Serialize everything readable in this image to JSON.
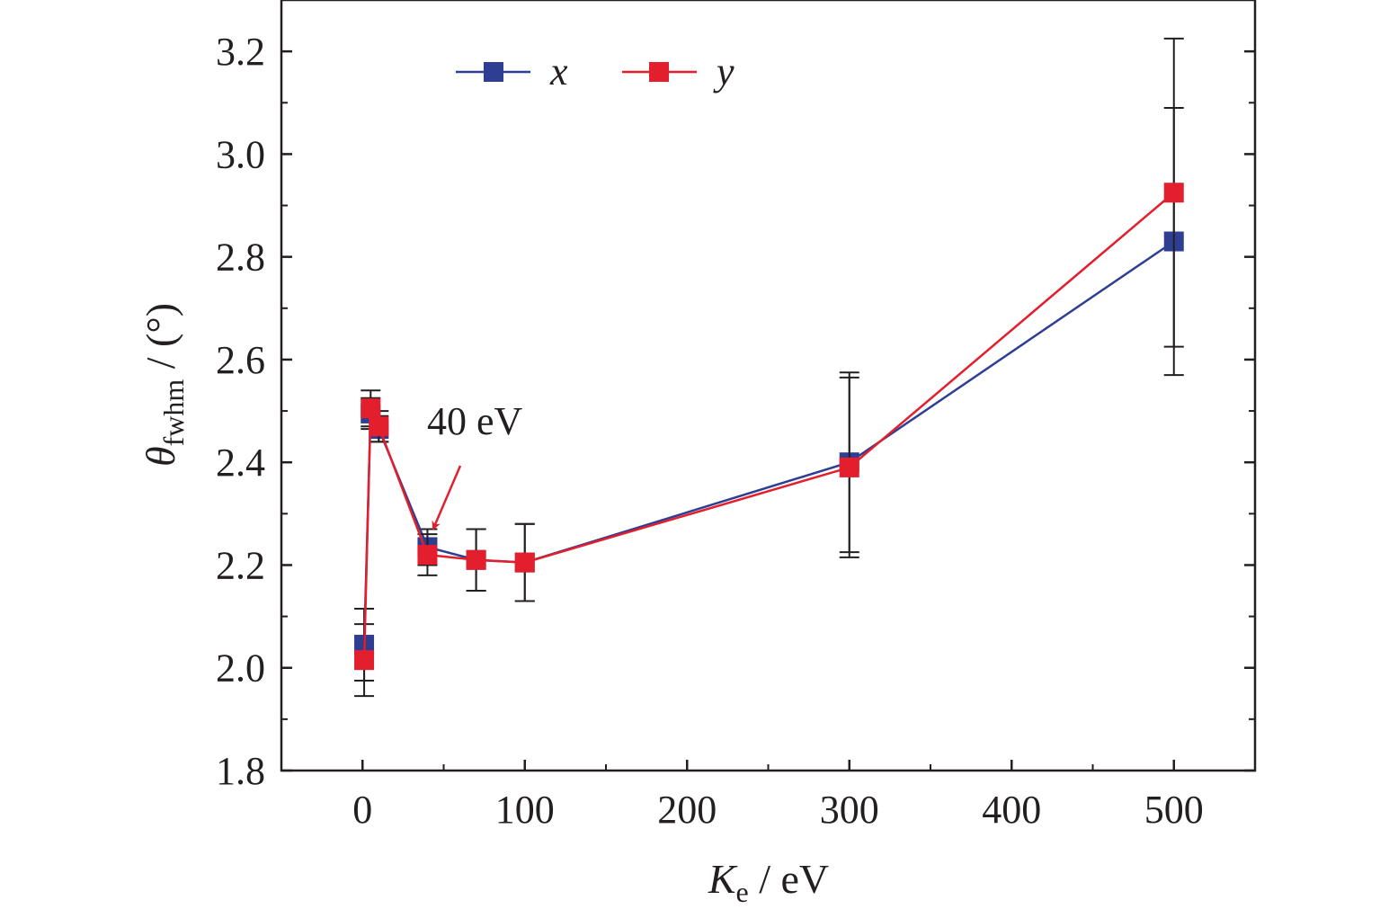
{
  "chart_data": {
    "type": "line",
    "xlabel": {
      "main": "K",
      "sub": "e",
      "unit": " / eV"
    },
    "ylabel": {
      "main": "θ",
      "sub": "fwhm",
      "unit": " / (°)"
    },
    "xlim": [
      -50,
      550
    ],
    "ylim": [
      1.8,
      3.3
    ],
    "xticks": [
      0,
      100,
      200,
      300,
      400,
      500
    ],
    "xtick_labels": [
      "0",
      "100",
      "200",
      "300",
      "400",
      "500"
    ],
    "yticks": [
      1.8,
      2.0,
      2.2,
      2.4,
      2.6,
      2.8,
      3.0,
      3.2
    ],
    "ytick_labels": [
      "1.8",
      "2.0",
      "2.2",
      "2.4",
      "2.6",
      "2.8",
      "3.0",
      "3.2"
    ],
    "grid": false,
    "legend_position": "top-left",
    "series": [
      {
        "name": "x",
        "color": "#2e3e93",
        "x": [
          1,
          5,
          10,
          40,
          70,
          100,
          300,
          500
        ],
        "y": [
          2.045,
          2.495,
          2.465,
          2.235,
          2.21,
          2.205,
          2.4,
          2.83
        ],
        "err": [
          0.07,
          0.03,
          0.025,
          0.035,
          0.06,
          0.075,
          0.175,
          0.26
        ]
      },
      {
        "name": "y",
        "color": "#e31e2d",
        "x": [
          1,
          5,
          10,
          40,
          70,
          100,
          300,
          500
        ],
        "y": [
          2.015,
          2.505,
          2.47,
          2.22,
          2.21,
          2.205,
          2.39,
          2.925
        ],
        "err": [
          0.07,
          0.035,
          0.03,
          0.04,
          0.06,
          0.075,
          0.175,
          0.3
        ]
      }
    ],
    "annotations": [
      {
        "text": "40 eV",
        "target_x": 40,
        "target_y": 2.25,
        "color": "#e31e2d"
      }
    ]
  }
}
